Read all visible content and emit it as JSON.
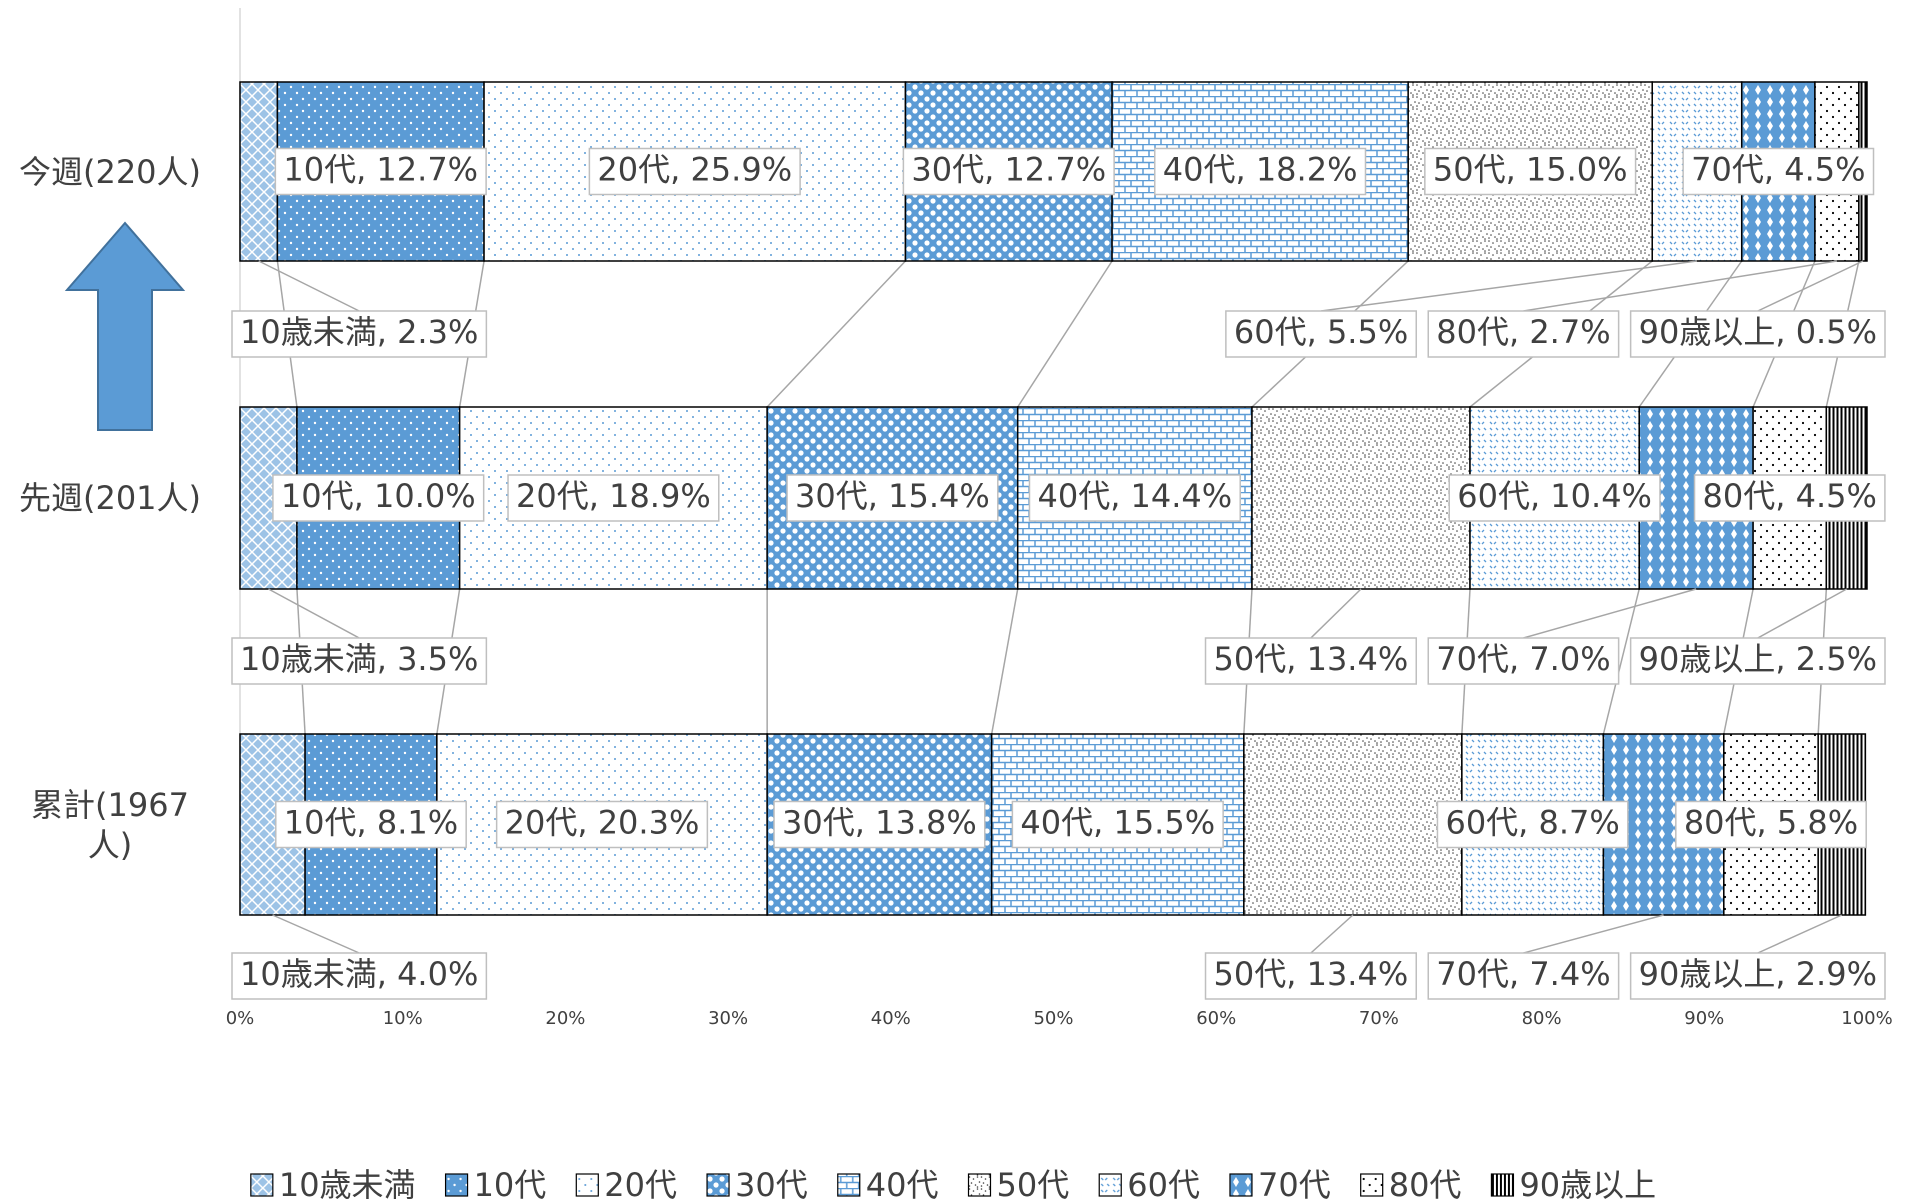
{
  "chart_data": {
    "type": "stacked-bar-horizontal",
    "categories": [
      "今週(220人)",
      "先週(201人)",
      "累計(1967人)"
    ],
    "series": [
      {
        "name": "10歳未満",
        "color": "#9dc3e6",
        "values": [
          2.3,
          3.5,
          4.0
        ],
        "value_labels": [
          "10歳未満, 2.3%",
          "10歳未満, 3.5%",
          "10歳未満, 4.0%"
        ]
      },
      {
        "name": "10代",
        "color": "#5b9bd5",
        "values": [
          12.7,
          10.0,
          8.1
        ],
        "value_labels": [
          "10代, 12.7%",
          "10代, 10.0%",
          "10代, 8.1%"
        ]
      },
      {
        "name": "20代",
        "color": "#5b9bd5",
        "values": [
          25.9,
          18.9,
          20.3
        ],
        "value_labels": [
          "20代, 25.9%",
          "20代, 18.9%",
          "20代, 20.3%"
        ]
      },
      {
        "name": "30代",
        "color": "#5b9bd5",
        "values": [
          12.7,
          15.4,
          13.8
        ],
        "value_labels": [
          "30代, 12.7%",
          "30代, 15.4%",
          "30代, 13.8%"
        ]
      },
      {
        "name": "40代",
        "color": "#5b9bd5",
        "values": [
          18.2,
          14.4,
          15.5
        ],
        "value_labels": [
          "40代, 18.2%",
          "40代, 14.4%",
          "40代, 15.5%"
        ]
      },
      {
        "name": "50代",
        "color": "#404040",
        "values": [
          15.0,
          13.4,
          13.4
        ],
        "value_labels": [
          "50代, 15.0%",
          "50代, 13.4%",
          "50代, 13.4%"
        ]
      },
      {
        "name": "60代",
        "color": "#5b9bd5",
        "values": [
          5.5,
          10.4,
          8.7
        ],
        "value_labels": [
          "60代, 5.5%",
          "60代, 10.4%",
          "60代, 8.7%"
        ]
      },
      {
        "name": "70代",
        "color": "#5b9bd5",
        "values": [
          4.5,
          7.0,
          7.4
        ],
        "value_labels": [
          "70代, 4.5%",
          "70代, 7.0%",
          "70代, 7.4%"
        ]
      },
      {
        "name": "80代",
        "color": "#000000",
        "values": [
          2.7,
          4.5,
          5.8
        ],
        "value_labels": [
          "80代, 2.7%",
          "80代, 4.5%",
          "80代, 5.8%"
        ]
      },
      {
        "name": "90歳以上",
        "color": "#000000",
        "values": [
          0.5,
          2.5,
          2.9
        ],
        "value_labels": [
          "90歳以上, 0.5%",
          "90歳以上, 2.5%",
          "90歳以上, 2.9%"
        ]
      }
    ],
    "xlim": [
      0,
      100
    ],
    "xticks": [
      {
        "value": 0,
        "label": "0%"
      },
      {
        "value": 10,
        "label": "10%"
      },
      {
        "value": 20,
        "label": "20%"
      },
      {
        "value": 30,
        "label": "30%"
      },
      {
        "value": 40,
        "label": "40%"
      },
      {
        "value": 50,
        "label": "50%"
      },
      {
        "value": 60,
        "label": "60%"
      },
      {
        "value": 70,
        "label": "70%"
      },
      {
        "value": 80,
        "label": "80%"
      },
      {
        "value": 90,
        "label": "90%"
      },
      {
        "value": 100,
        "label": "100%"
      }
    ],
    "legend": "bottom"
  }
}
